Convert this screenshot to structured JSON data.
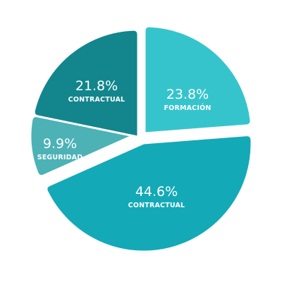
{
  "chart_data": {
    "type": "pie",
    "title": "",
    "slices": [
      {
        "label": "FORMACIÓN",
        "value": 23.8,
        "value_label": "23.8%",
        "color": "#36c4cc"
      },
      {
        "label": "CONTRACTUAL",
        "value": 44.6,
        "value_label": "44.6%",
        "color": "#14a9b7"
      },
      {
        "label": "SEGURIDAD",
        "value": 9.9,
        "value_label": "9.9%",
        "color": "#4cb2b6"
      },
      {
        "label": "CONTRACTUAL",
        "value": 21.8,
        "value_label": "21.8%",
        "color": "#12868c"
      }
    ],
    "start_angle_deg": 0,
    "direction": "clockwise",
    "legend": "none",
    "exploded": true
  }
}
